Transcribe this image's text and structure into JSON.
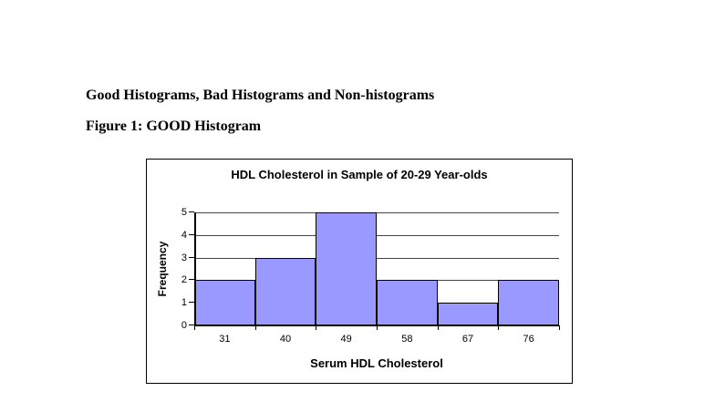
{
  "page": {
    "background": "#ffffff",
    "heading1": "Good Histograms, Bad Histograms and Non-histograms",
    "heading2": "Figure 1: GOOD Histogram"
  },
  "chart_data": {
    "type": "bar",
    "subtype": "histogram",
    "title": "HDL Cholesterol in Sample of 20-29 Year-olds",
    "xlabel": "Serum HDL Cholesterol",
    "ylabel": "Frequency",
    "categories": [
      "31",
      "40",
      "49",
      "58",
      "67",
      "76"
    ],
    "values": [
      2,
      3,
      5,
      2,
      1,
      2
    ],
    "ylim": [
      0,
      5
    ],
    "yticks": [
      0,
      1,
      2,
      3,
      4,
      5
    ],
    "grid": true,
    "legend_position": "none",
    "bar_gap": 0,
    "colors": {
      "bar_fill": "#9999FF",
      "bar_border": "#000000",
      "gridline": "#444444",
      "axis": "#000000",
      "chart_border": "#000000",
      "text": "#000000"
    }
  }
}
